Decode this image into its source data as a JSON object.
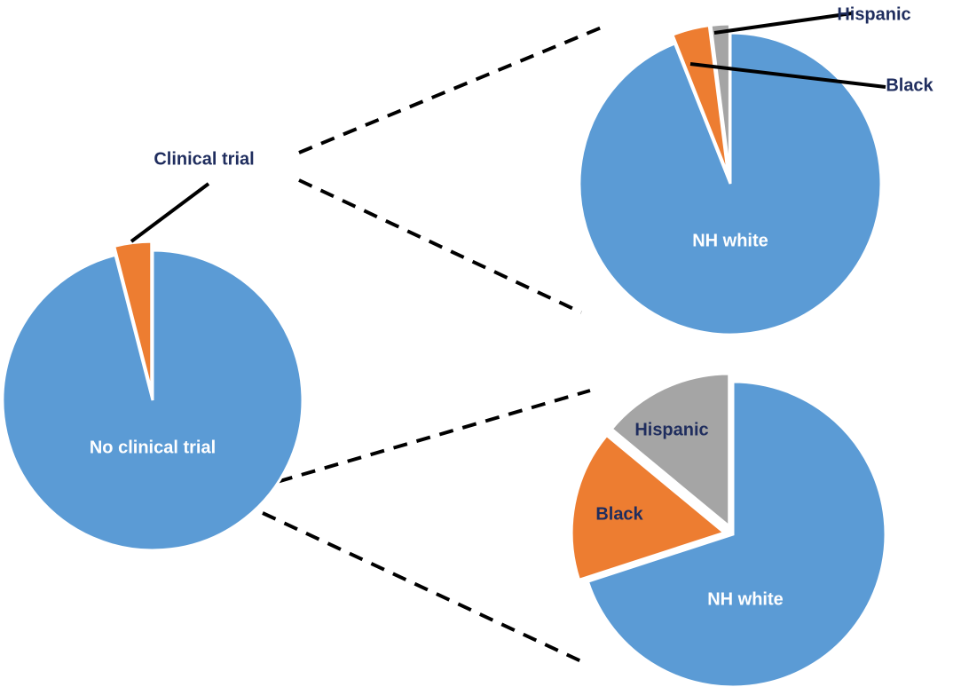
{
  "chart_data": [
    {
      "type": "pie",
      "categories": [
        "No clinical trial",
        "Clinical trial"
      ],
      "values": [
        96,
        4
      ],
      "colors": [
        "#5b9bd5",
        "#ed7d31"
      ]
    },
    {
      "type": "pie",
      "categories": [
        "NH white",
        "Black",
        "Hispanic"
      ],
      "values": [
        94,
        4,
        2
      ],
      "colors": [
        "#5b9bd5",
        "#ed7d31",
        "#a5a5a5"
      ]
    },
    {
      "type": "pie",
      "categories": [
        "NH white",
        "Black",
        "Hispanic"
      ],
      "values": [
        70,
        16,
        14
      ],
      "colors": [
        "#5b9bd5",
        "#ed7d31",
        "#a5a5a5"
      ]
    }
  ]
}
